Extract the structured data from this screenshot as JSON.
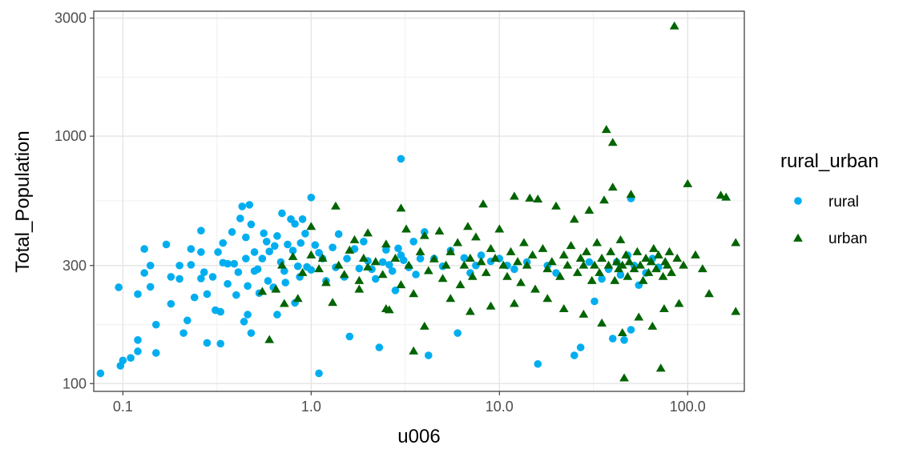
{
  "chart_data": {
    "type": "scatter",
    "xlabel": "u006",
    "ylabel": "Total_Population",
    "x_scale": "log10",
    "y_scale": "log10",
    "xlim": [
      0.07,
      200
    ],
    "ylim": [
      93,
      3200
    ],
    "x_ticks": [
      {
        "value": 0.1,
        "label": "0.1"
      },
      {
        "value": 1,
        "label": "1.0"
      },
      {
        "value": 10,
        "label": "10.0"
      },
      {
        "value": 100,
        "label": "100.0"
      }
    ],
    "x_minor": [
      0.316,
      3.16,
      31.6
    ],
    "y_ticks": [
      {
        "value": 100,
        "label": "100"
      },
      {
        "value": 300,
        "label": "300"
      },
      {
        "value": 1000,
        "label": "1000"
      },
      {
        "value": 3000,
        "label": "3000"
      }
    ],
    "y_minor": [
      173,
      548,
      1732
    ],
    "grid": true,
    "legend": {
      "title": "rural_urban",
      "position": "right"
    },
    "series": [
      {
        "name": "rural",
        "marker": "circle",
        "color": "#00AEEF",
        "points": [
          [
            0.076,
            110
          ],
          [
            0.095,
            245
          ],
          [
            0.097,
            118
          ],
          [
            0.1,
            124
          ],
          [
            0.11,
            127
          ],
          [
            0.12,
            230
          ],
          [
            0.12,
            150
          ],
          [
            0.12,
            135
          ],
          [
            0.13,
            350
          ],
          [
            0.13,
            280
          ],
          [
            0.14,
            300
          ],
          [
            0.14,
            246
          ],
          [
            0.15,
            173
          ],
          [
            0.15,
            133
          ],
          [
            0.17,
            365
          ],
          [
            0.18,
            270
          ],
          [
            0.18,
            210
          ],
          [
            0.2,
            300
          ],
          [
            0.2,
            265
          ],
          [
            0.21,
            160
          ],
          [
            0.22,
            180
          ],
          [
            0.23,
            302
          ],
          [
            0.23,
            350
          ],
          [
            0.24,
            223
          ],
          [
            0.26,
            415
          ],
          [
            0.26,
            340
          ],
          [
            0.26,
            266
          ],
          [
            0.27,
            282
          ],
          [
            0.28,
            230
          ],
          [
            0.28,
            146
          ],
          [
            0.3,
            270
          ],
          [
            0.31,
            198
          ],
          [
            0.32,
            340
          ],
          [
            0.33,
            145
          ],
          [
            0.33,
            195
          ],
          [
            0.34,
            308
          ],
          [
            0.34,
            370
          ],
          [
            0.36,
            253
          ],
          [
            0.36,
            305
          ],
          [
            0.38,
            410
          ],
          [
            0.39,
            305
          ],
          [
            0.4,
            228
          ],
          [
            0.41,
            282
          ],
          [
            0.42,
            465
          ],
          [
            0.43,
            520
          ],
          [
            0.44,
            178
          ],
          [
            0.45,
            320
          ],
          [
            0.45,
            390
          ],
          [
            0.46,
            248
          ],
          [
            0.46,
            190
          ],
          [
            0.47,
            528
          ],
          [
            0.48,
            440
          ],
          [
            0.48,
            160
          ],
          [
            0.5,
            340
          ],
          [
            0.5,
            285
          ],
          [
            0.52,
            290
          ],
          [
            0.53,
            232
          ],
          [
            0.55,
            320
          ],
          [
            0.56,
            405
          ],
          [
            0.58,
            375
          ],
          [
            0.59,
            260
          ],
          [
            0.6,
            342
          ],
          [
            0.63,
            245
          ],
          [
            0.64,
            360
          ],
          [
            0.66,
            395
          ],
          [
            0.66,
            190
          ],
          [
            0.69,
            310
          ],
          [
            0.7,
            488
          ],
          [
            0.72,
            285
          ],
          [
            0.73,
            256
          ],
          [
            0.75,
            365
          ],
          [
            0.78,
            462
          ],
          [
            0.8,
            345
          ],
          [
            0.82,
            212
          ],
          [
            0.82,
            442
          ],
          [
            0.85,
            298
          ],
          [
            0.87,
            270
          ],
          [
            0.88,
            370
          ],
          [
            0.9,
            462
          ],
          [
            0.93,
            404
          ],
          [
            0.95,
            296
          ],
          [
            1.0,
            565
          ],
          [
            1.0,
            288
          ],
          [
            1.05,
            363
          ],
          [
            1.1,
            338
          ],
          [
            1.1,
            110
          ],
          [
            1.15,
            320
          ],
          [
            1.2,
            260
          ],
          [
            1.3,
            355
          ],
          [
            1.35,
            295
          ],
          [
            1.4,
            402
          ],
          [
            1.5,
            270
          ],
          [
            1.55,
            320
          ],
          [
            1.6,
            155
          ],
          [
            1.7,
            350
          ],
          [
            1.8,
            292
          ],
          [
            1.9,
            375
          ],
          [
            2.0,
            313
          ],
          [
            2.1,
            290
          ],
          [
            2.2,
            265
          ],
          [
            2.3,
            140
          ],
          [
            2.4,
            310
          ],
          [
            2.5,
            347
          ],
          [
            2.6,
            302
          ],
          [
            2.7,
            285
          ],
          [
            2.8,
            238
          ],
          [
            2.9,
            352
          ],
          [
            3.0,
            810
          ],
          [
            3.0,
            330
          ],
          [
            3.1,
            315
          ],
          [
            3.3,
            295
          ],
          [
            3.5,
            375
          ],
          [
            3.6,
            276
          ],
          [
            3.8,
            320
          ],
          [
            4.0,
            410
          ],
          [
            4.2,
            130
          ],
          [
            4.5,
            320
          ],
          [
            5.0,
            298
          ],
          [
            5.5,
            345
          ],
          [
            6.0,
            160
          ],
          [
            6.5,
            322
          ],
          [
            7.0,
            280
          ],
          [
            7.5,
            300
          ],
          [
            8.0,
            330
          ],
          [
            9.0,
            312
          ],
          [
            10.0,
            320
          ],
          [
            11.0,
            300
          ],
          [
            12.0,
            290
          ],
          [
            14.0,
            310
          ],
          [
            16.0,
            120
          ],
          [
            18.0,
            300
          ],
          [
            20.0,
            280
          ],
          [
            25.0,
            130
          ],
          [
            27.0,
            140
          ],
          [
            30.0,
            310
          ],
          [
            32.0,
            215
          ],
          [
            35.0,
            265
          ],
          [
            38.0,
            290
          ],
          [
            40.0,
            152
          ],
          [
            42.0,
            310
          ],
          [
            44.0,
            275
          ],
          [
            46.0,
            150
          ],
          [
            48.0,
            330
          ],
          [
            50.0,
            165
          ],
          [
            50.0,
            560
          ],
          [
            52.0,
            300
          ],
          [
            55.0,
            250
          ],
          [
            60.0,
            280
          ],
          [
            65.0,
            320
          ],
          [
            70.0,
            295
          ]
        ]
      },
      {
        "name": "urban",
        "marker": "triangle",
        "color": "#006400",
        "points": [
          [
            0.55,
            235
          ],
          [
            0.6,
            150
          ],
          [
            0.65,
            240
          ],
          [
            0.7,
            300
          ],
          [
            0.72,
            210
          ],
          [
            0.8,
            325
          ],
          [
            0.85,
            220
          ],
          [
            0.9,
            280
          ],
          [
            1.0,
            330
          ],
          [
            1.0,
            430
          ],
          [
            1.1,
            290
          ],
          [
            1.15,
            320
          ],
          [
            1.2,
            255
          ],
          [
            1.3,
            212
          ],
          [
            1.35,
            520
          ],
          [
            1.4,
            300
          ],
          [
            1.5,
            275
          ],
          [
            1.6,
            345
          ],
          [
            1.7,
            380
          ],
          [
            1.8,
            260
          ],
          [
            1.9,
            320
          ],
          [
            2.0,
            295
          ],
          [
            2.0,
            405
          ],
          [
            2.2,
            310
          ],
          [
            2.4,
            275
          ],
          [
            2.5,
            365
          ],
          [
            2.6,
            198
          ],
          [
            2.8,
            320
          ],
          [
            3.0,
            250
          ],
          [
            3.0,
            510
          ],
          [
            3.2,
            420
          ],
          [
            3.3,
            300
          ],
          [
            3.5,
            230
          ],
          [
            3.8,
            340
          ],
          [
            4.0,
            395
          ],
          [
            4.2,
            285
          ],
          [
            4.5,
            318
          ],
          [
            4.8,
            412
          ],
          [
            5.0,
            265
          ],
          [
            5.2,
            300
          ],
          [
            5.5,
            340
          ],
          [
            6.0,
            370
          ],
          [
            6.2,
            250
          ],
          [
            6.5,
            300
          ],
          [
            6.8,
            430
          ],
          [
            7.0,
            320
          ],
          [
            7.2,
            270
          ],
          [
            7.5,
            390
          ],
          [
            8.0,
            310
          ],
          [
            8.2,
            530
          ],
          [
            8.5,
            280
          ],
          [
            9.0,
            350
          ],
          [
            9.5,
            320
          ],
          [
            10.0,
            420
          ],
          [
            10.5,
            300
          ],
          [
            11.0,
            270
          ],
          [
            11.5,
            340
          ],
          [
            12.0,
            570
          ],
          [
            12.5,
            310
          ],
          [
            13.0,
            255
          ],
          [
            13.5,
            370
          ],
          [
            14.0,
            300
          ],
          [
            14.5,
            560
          ],
          [
            15.0,
            330
          ],
          [
            15.5,
            240
          ],
          [
            16.0,
            555
          ],
          [
            17.0,
            350
          ],
          [
            18.0,
            290
          ],
          [
            19.0,
            310
          ],
          [
            20.0,
            520
          ],
          [
            21.0,
            270
          ],
          [
            22.0,
            330
          ],
          [
            23.0,
            300
          ],
          [
            24.0,
            360
          ],
          [
            25.0,
            460
          ],
          [
            26.0,
            280
          ],
          [
            27.0,
            320
          ],
          [
            28.0,
            300
          ],
          [
            29.0,
            340
          ],
          [
            30.0,
            500
          ],
          [
            31.0,
            260
          ],
          [
            32.0,
            300
          ],
          [
            33.0,
            370
          ],
          [
            34.0,
            280
          ],
          [
            35.0,
            320
          ],
          [
            36.0,
            550
          ],
          [
            37.0,
            1060
          ],
          [
            38.0,
            300
          ],
          [
            39.0,
            340
          ],
          [
            40.0,
            620
          ],
          [
            40.0,
            940
          ],
          [
            41.0,
            260
          ],
          [
            42.0,
            310
          ],
          [
            43.0,
            290
          ],
          [
            44.0,
            380
          ],
          [
            45.0,
            300
          ],
          [
            46.0,
            105
          ],
          [
            47.0,
            330
          ],
          [
            48.0,
            270
          ],
          [
            49.0,
            310
          ],
          [
            50.0,
            580
          ],
          [
            52.0,
            290
          ],
          [
            54.0,
            340
          ],
          [
            56.0,
            300
          ],
          [
            58.0,
            260
          ],
          [
            60.0,
            320
          ],
          [
            62.0,
            280
          ],
          [
            64.0,
            310
          ],
          [
            66.0,
            350
          ],
          [
            68.0,
            290
          ],
          [
            70.0,
            330
          ],
          [
            72.0,
            115
          ],
          [
            74.0,
            270
          ],
          [
            76.0,
            310
          ],
          [
            78.0,
            300
          ],
          [
            80.0,
            340
          ],
          [
            82.0,
            280
          ],
          [
            85.0,
            2780
          ],
          [
            88.0,
            320
          ],
          [
            90.0,
            210
          ],
          [
            95.0,
            300
          ],
          [
            100.0,
            640
          ],
          [
            110.0,
            330
          ],
          [
            120.0,
            290
          ],
          [
            130.0,
            230
          ],
          [
            150.0,
            575
          ],
          [
            160.0,
            565
          ],
          [
            180.0,
            370
          ],
          [
            180.0,
            195
          ],
          [
            45.0,
            160
          ],
          [
            35.0,
            175
          ],
          [
            28.0,
            190
          ],
          [
            55.0,
            185
          ],
          [
            65.0,
            170
          ],
          [
            75.0,
            200
          ],
          [
            22.0,
            200
          ],
          [
            18.0,
            220
          ],
          [
            12.0,
            210
          ],
          [
            9.0,
            205
          ],
          [
            7.0,
            195
          ],
          [
            5.5,
            220
          ],
          [
            4.0,
            170
          ],
          [
            3.5,
            135
          ],
          [
            2.5,
            200
          ],
          [
            1.8,
            240
          ]
        ]
      }
    ]
  }
}
